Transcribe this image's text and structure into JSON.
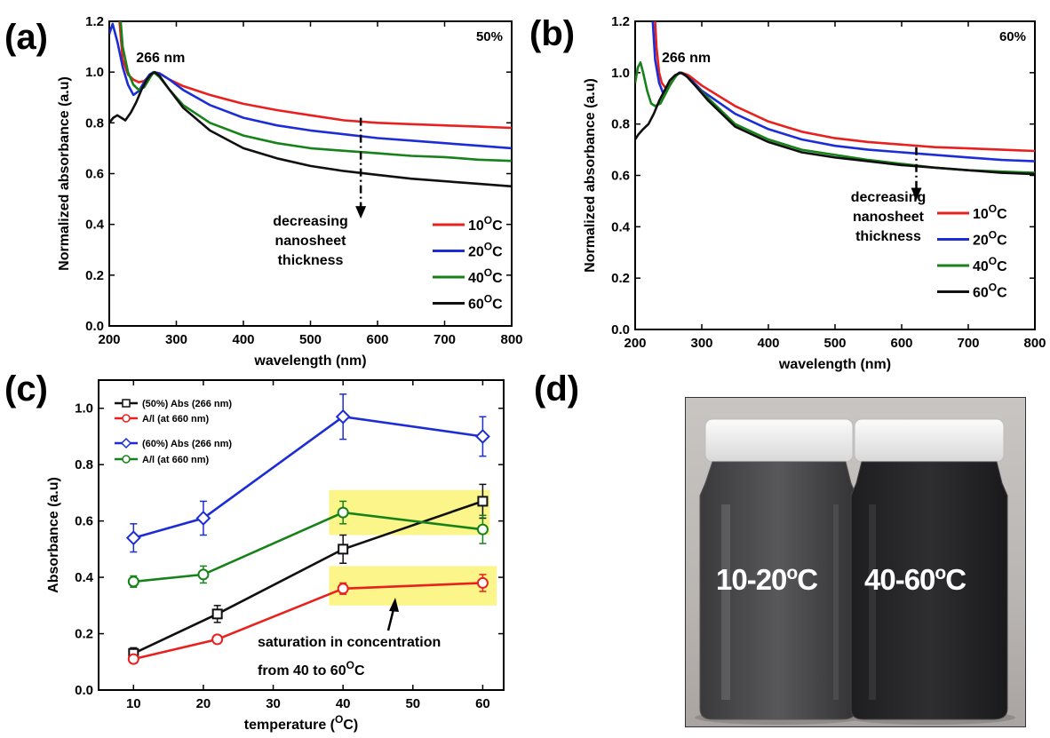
{
  "panels": {
    "a": {
      "label": "(a)"
    },
    "b": {
      "label": "(b)"
    },
    "c": {
      "label": "(c)"
    },
    "d": {
      "label": "(d)"
    }
  },
  "colors": {
    "c10": "#e8201e",
    "c20": "#1c2dd6",
    "c40": "#17821a",
    "c60": "#101010",
    "highlight": "#fbf58a"
  },
  "chart_data": [
    {
      "id": "a",
      "type": "line",
      "xlabel": "wavelength (nm)",
      "ylabel": "Normalized absorbance (a.u)",
      "xlim": [
        200,
        800
      ],
      "ylim": [
        0.0,
        1.2
      ],
      "xticks": [
        "200",
        "300",
        "400",
        "500",
        "600",
        "700",
        "800"
      ],
      "yticks": [
        "0.0",
        "0.2",
        "0.4",
        "0.6",
        "0.8",
        "1.0",
        "1.2"
      ],
      "corner_label": "50%",
      "peak_label": "266 nm",
      "annotation": [
        "decreasing",
        "nanosheet",
        "thickness"
      ],
      "legend_position": "bottom-right",
      "series": [
        {
          "name": "10",
          "unit": "oC",
          "color": "#e8201e",
          "x": [
            212,
            220,
            228,
            236,
            244,
            252,
            260,
            266,
            275,
            290,
            310,
            350,
            400,
            450,
            500,
            550,
            600,
            650,
            700,
            750,
            800
          ],
          "y": [
            1.3,
            1.05,
            0.99,
            0.97,
            0.96,
            0.965,
            0.985,
            1.0,
            0.995,
            0.97,
            0.945,
            0.91,
            0.875,
            0.85,
            0.83,
            0.81,
            0.8,
            0.795,
            0.79,
            0.785,
            0.78
          ]
        },
        {
          "name": "20",
          "unit": "oC",
          "color": "#1c2dd6",
          "x": [
            200,
            205,
            212,
            220,
            228,
            236,
            244,
            252,
            260,
            266,
            275,
            290,
            310,
            350,
            400,
            450,
            500,
            550,
            600,
            650,
            700,
            750,
            800
          ],
          "y": [
            1.15,
            1.19,
            1.12,
            1.02,
            0.95,
            0.91,
            0.925,
            0.96,
            0.99,
            1.0,
            0.995,
            0.97,
            0.93,
            0.87,
            0.82,
            0.79,
            0.77,
            0.755,
            0.74,
            0.73,
            0.72,
            0.71,
            0.7
          ]
        },
        {
          "name": "40",
          "unit": "oC",
          "color": "#17821a",
          "x": [
            214,
            220,
            228,
            236,
            244,
            252,
            260,
            266,
            275,
            290,
            310,
            350,
            400,
            450,
            500,
            550,
            600,
            650,
            700,
            750,
            800
          ],
          "y": [
            1.3,
            1.1,
            1.0,
            0.95,
            0.93,
            0.94,
            0.975,
            1.0,
            0.98,
            0.93,
            0.87,
            0.8,
            0.75,
            0.72,
            0.7,
            0.69,
            0.68,
            0.67,
            0.665,
            0.655,
            0.65
          ]
        },
        {
          "name": "60",
          "unit": "oC",
          "color": "#101010",
          "x": [
            200,
            206,
            212,
            218,
            224,
            232,
            240,
            248,
            256,
            262,
            268,
            275,
            290,
            310,
            350,
            400,
            450,
            500,
            550,
            600,
            650,
            700,
            750,
            800
          ],
          "y": [
            0.8,
            0.82,
            0.83,
            0.82,
            0.81,
            0.84,
            0.88,
            0.93,
            0.97,
            0.99,
            1.0,
            0.985,
            0.93,
            0.86,
            0.77,
            0.7,
            0.66,
            0.63,
            0.61,
            0.595,
            0.58,
            0.57,
            0.56,
            0.55
          ]
        }
      ]
    },
    {
      "id": "b",
      "type": "line",
      "xlabel": "wavelength (nm)",
      "ylabel": "Normalized absorbance (a.u)",
      "xlim": [
        200,
        800
      ],
      "ylim": [
        0.0,
        1.2
      ],
      "xticks": [
        "200",
        "300",
        "400",
        "500",
        "600",
        "700",
        "800"
      ],
      "yticks": [
        "0.0",
        "0.2",
        "0.4",
        "0.6",
        "0.8",
        "1.0",
        "1.2"
      ],
      "corner_label": "60%",
      "peak_label": "266 nm",
      "annotation": [
        "decreasing",
        "nanosheet",
        "thickness"
      ],
      "legend_position": "bottom-right",
      "series": [
        {
          "name": "10",
          "unit": "oC",
          "color": "#e8201e",
          "x": [
            228,
            232,
            236,
            240,
            246,
            252,
            258,
            264,
            270,
            280,
            300,
            350,
            400,
            450,
            500,
            550,
            600,
            650,
            700,
            750,
            800
          ],
          "y": [
            1.3,
            1.1,
            1.0,
            0.96,
            0.94,
            0.95,
            0.975,
            0.995,
            1.0,
            0.99,
            0.95,
            0.87,
            0.81,
            0.77,
            0.745,
            0.73,
            0.72,
            0.71,
            0.705,
            0.7,
            0.695
          ]
        },
        {
          "name": "20",
          "unit": "oC",
          "color": "#1c2dd6",
          "x": [
            224,
            230,
            236,
            242,
            248,
            254,
            260,
            266,
            272,
            285,
            300,
            350,
            400,
            450,
            500,
            550,
            600,
            650,
            700,
            750,
            800
          ],
          "y": [
            1.3,
            1.05,
            0.96,
            0.92,
            0.935,
            0.96,
            0.985,
            1.0,
            0.995,
            0.97,
            0.93,
            0.84,
            0.78,
            0.74,
            0.715,
            0.7,
            0.69,
            0.68,
            0.67,
            0.66,
            0.655
          ]
        },
        {
          "name": "40",
          "unit": "oC",
          "color": "#17821a",
          "x": [
            200,
            204,
            208,
            212,
            218,
            224,
            230,
            238,
            246,
            254,
            262,
            268,
            276,
            290,
            310,
            350,
            400,
            450,
            500,
            550,
            600,
            650,
            700,
            750,
            800
          ],
          "y": [
            0.96,
            1.02,
            1.04,
            1.0,
            0.93,
            0.88,
            0.87,
            0.88,
            0.92,
            0.96,
            0.99,
            1.0,
            0.99,
            0.95,
            0.9,
            0.8,
            0.74,
            0.7,
            0.68,
            0.66,
            0.645,
            0.63,
            0.62,
            0.615,
            0.61
          ]
        },
        {
          "name": "60",
          "unit": "oC",
          "color": "#101010",
          "x": [
            200,
            205,
            212,
            220,
            228,
            236,
            244,
            252,
            260,
            268,
            276,
            290,
            310,
            350,
            400,
            450,
            500,
            550,
            600,
            650,
            700,
            750,
            800
          ],
          "y": [
            0.74,
            0.76,
            0.78,
            0.8,
            0.84,
            0.89,
            0.93,
            0.97,
            0.99,
            1.0,
            0.99,
            0.95,
            0.89,
            0.79,
            0.73,
            0.69,
            0.67,
            0.655,
            0.64,
            0.63,
            0.62,
            0.61,
            0.605
          ]
        }
      ]
    },
    {
      "id": "c",
      "type": "line",
      "xlabel": "temperature (",
      "xlabel_unit": "O",
      "xlabel_end": "C)",
      "ylabel": "Absorbance (a.u)",
      "xlim": [
        5,
        63
      ],
      "ylim": [
        0.0,
        1.1
      ],
      "xticks": [
        "10",
        "20",
        "30",
        "40",
        "50",
        "60"
      ],
      "yticks": [
        "0.0",
        "0.2",
        "0.4",
        "0.6",
        "0.8",
        "1.0"
      ],
      "legend_position": "top-left",
      "series": [
        {
          "name": "(50%) Abs (266 nm)",
          "color": "#101010",
          "marker": "square",
          "x": [
            10,
            22,
            40,
            60
          ],
          "y": [
            0.13,
            0.27,
            0.5,
            0.67
          ],
          "err": [
            0.02,
            0.03,
            0.05,
            0.06
          ]
        },
        {
          "name": "A/l (at 660 nm)",
          "color": "#e8201e",
          "marker": "circle",
          "x": [
            10,
            22,
            40,
            60
          ],
          "y": [
            0.11,
            0.18,
            0.36,
            0.38
          ],
          "err": [
            0.01,
            0.015,
            0.02,
            0.03
          ]
        },
        {
          "name": "(60%) Abs (266 nm)",
          "color": "#1c2dd6",
          "marker": "diamond",
          "x": [
            10,
            20,
            40,
            60
          ],
          "y": [
            0.54,
            0.61,
            0.97,
            0.9
          ],
          "err": [
            0.05,
            0.06,
            0.08,
            0.07
          ]
        },
        {
          "name": "A/l (at 660 nm)",
          "color": "#17821a",
          "marker": "circle",
          "x": [
            10,
            20,
            40,
            60
          ],
          "y": [
            0.385,
            0.41,
            0.63,
            0.57
          ],
          "err": [
            0.02,
            0.03,
            0.04,
            0.05
          ]
        }
      ],
      "annotation": [
        "saturation in concentration",
        "from 40 to 60",
        "O",
        "C"
      ],
      "highlights": [
        {
          "x0": 38,
          "x1": 61,
          "y0": 0.55,
          "y1": 0.71
        },
        {
          "x0": 38,
          "x1": 62,
          "y0": 0.3,
          "y1": 0.44
        }
      ]
    }
  ],
  "photo": {
    "left_label": "10-20",
    "right_label": "40-60",
    "unit_sup": "o",
    "unit": "C"
  }
}
